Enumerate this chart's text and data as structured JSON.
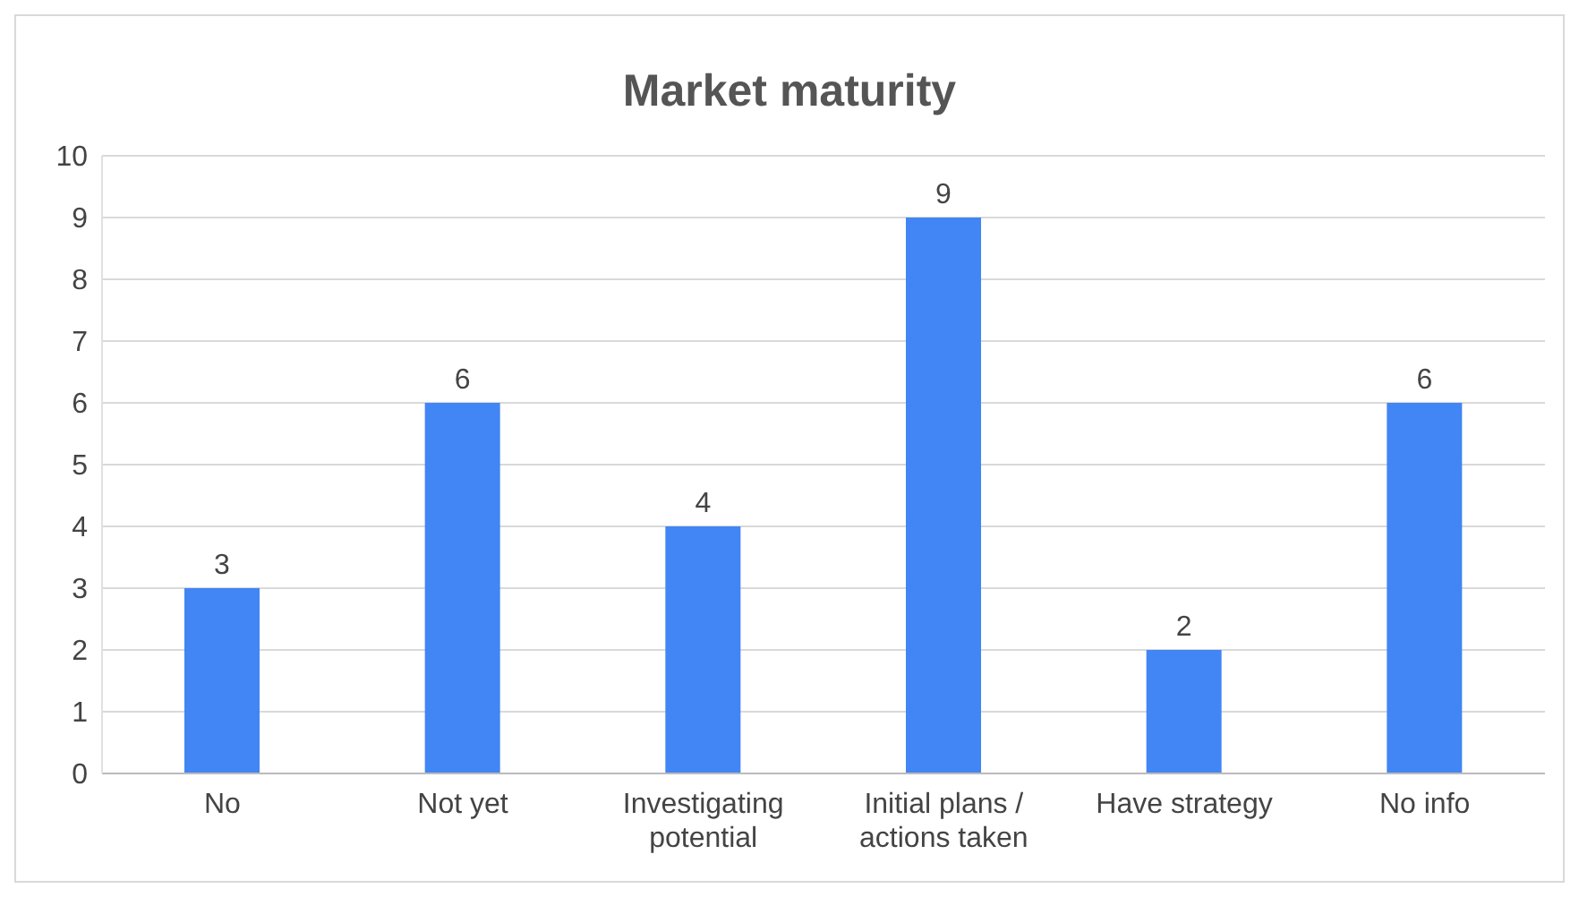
{
  "chart_data": {
    "type": "bar",
    "title": "Market maturity",
    "categories": [
      "No",
      "Not yet",
      "Investigating potential",
      "Initial plans / actions taken",
      "Have strategy",
      "No info"
    ],
    "values": [
      3,
      6,
      4,
      9,
      2,
      6
    ],
    "color": "#4285f4",
    "ylim": [
      0,
      10
    ],
    "yticks": [
      0,
      1,
      2,
      3,
      4,
      5,
      6,
      7,
      8,
      9,
      10
    ],
    "grid": "y",
    "data_labels": true
  }
}
